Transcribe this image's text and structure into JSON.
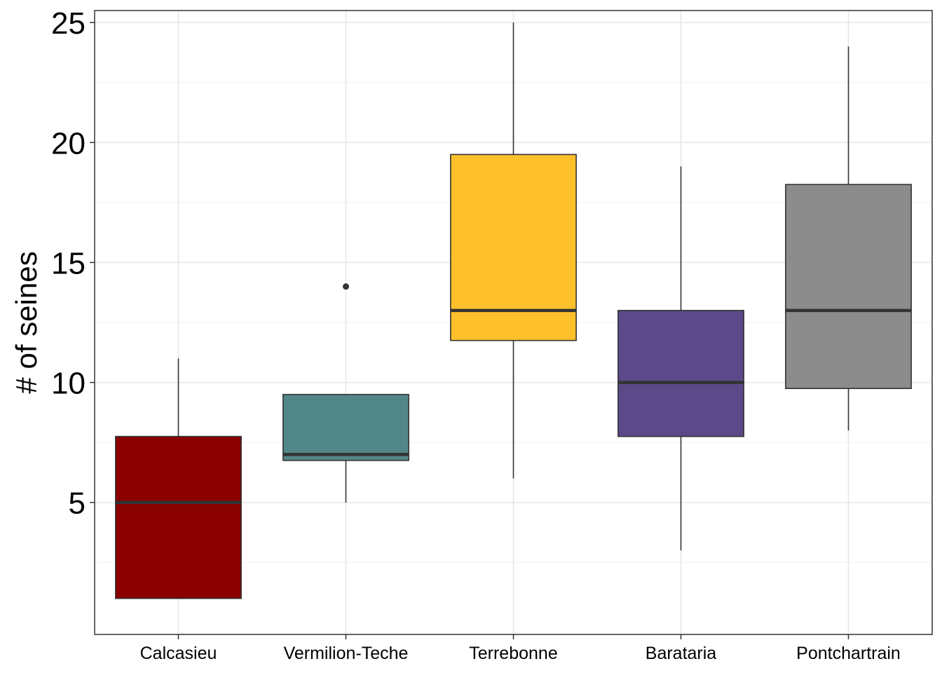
{
  "chart_data": {
    "type": "box",
    "title": "",
    "xlabel": "",
    "ylabel": "# of seines",
    "ylim": [
      -0.5,
      25.5
    ],
    "yticks": [
      5,
      10,
      15,
      20,
      25
    ],
    "grid": true,
    "legend": "none",
    "categories": [
      "Calcasieu",
      "Vermilion-Teche",
      "Terrebonne",
      "Barataria",
      "Pontchartrain"
    ],
    "boxes": [
      {
        "category": "Calcasieu",
        "min": 1,
        "q1": 1,
        "median": 5,
        "q3": 7.75,
        "max": 11,
        "outliers": [],
        "color": "#8B0000"
      },
      {
        "category": "Vermilion-Teche",
        "min": 5,
        "q1": 6.75,
        "median": 7,
        "q3": 9.5,
        "max": 9.5,
        "outliers": [
          14
        ],
        "color": "#52878A"
      },
      {
        "category": "Terrebonne",
        "min": 6,
        "q1": 11.75,
        "median": 13,
        "q3": 19.5,
        "max": 25,
        "outliers": [],
        "color": "#FDC02A"
      },
      {
        "category": "Barataria",
        "min": 3,
        "q1": 7.75,
        "median": 10,
        "q3": 13,
        "max": 19,
        "outliers": [],
        "color": "#5C4989"
      },
      {
        "category": "Pontchartrain",
        "min": 8,
        "q1": 9.75,
        "median": 13,
        "q3": 18.25,
        "max": 24,
        "outliers": [],
        "color": "#8C8C8C"
      }
    ]
  }
}
